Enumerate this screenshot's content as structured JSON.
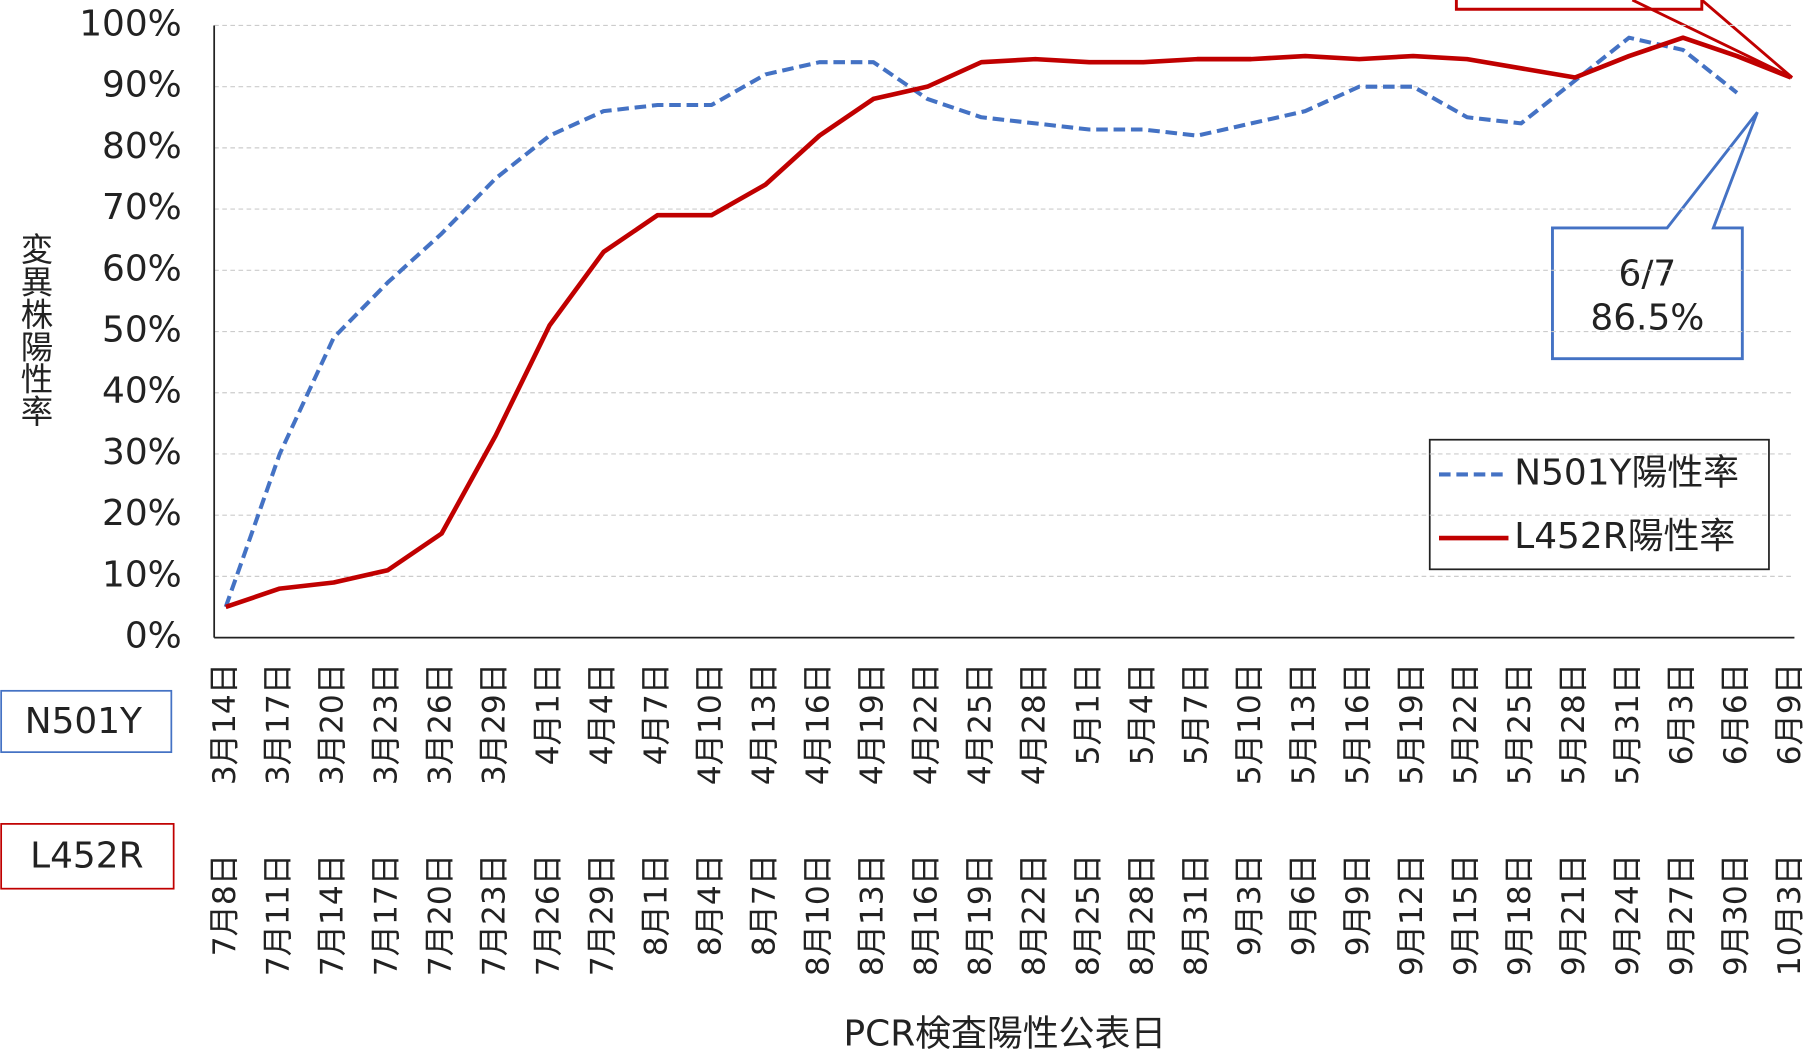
{
  "chart_data": {
    "type": "line",
    "y_axis_label": "変異株陽性率",
    "x_axis_label": "PCR検査陽性公表日",
    "category_rows": [
      {
        "name": "N501Y",
        "labels": [
          "3月14日",
          "3月17日",
          "3月20日",
          "3月23日",
          "3月26日",
          "3月29日",
          "4月1日",
          "4月4日",
          "4月7日",
          "4月10日",
          "4月13日",
          "4月16日",
          "4月19日",
          "4月22日",
          "4月25日",
          "4月28日",
          "5月1日",
          "5月4日",
          "5月7日",
          "5月10日",
          "5月13日",
          "5月16日",
          "5月19日",
          "5月22日",
          "5月25日",
          "5月28日",
          "5月31日",
          "6月3日",
          "6月6日",
          "6月9日"
        ]
      },
      {
        "name": "L452R",
        "labels": [
          "7月8日",
          "7月11日",
          "7月14日",
          "7月17日",
          "7月20日",
          "7月23日",
          "7月26日",
          "7月29日",
          "8月1日",
          "8月4日",
          "8月7日",
          "8月10日",
          "8月13日",
          "8月16日",
          "8月19日",
          "8月22日",
          "8月25日",
          "8月28日",
          "8月31日",
          "9月3日",
          "9月6日",
          "9月9日",
          "9月12日",
          "9月15日",
          "9月18日",
          "9月21日",
          "9月24日",
          "9月27日",
          "9月30日",
          "10月3日"
        ]
      }
    ],
    "series": [
      {
        "name": "N501Y陽性率",
        "color": "#4472c4",
        "dash": true,
        "values": [
          5,
          30,
          49,
          58,
          66,
          75,
          82,
          86,
          87,
          87,
          92,
          94,
          94,
          88,
          85,
          84,
          83,
          83,
          82,
          84,
          86,
          90,
          90,
          85,
          84,
          91,
          98,
          96,
          89,
          null
        ]
      },
      {
        "name": "L452R陽性率",
        "color": "#c00000",
        "dash": false,
        "values": [
          5,
          8,
          9,
          11,
          17,
          33,
          51,
          63,
          69,
          69,
          74,
          82,
          88,
          90,
          94,
          94.5,
          94,
          94,
          94.5,
          94.5,
          95,
          94.5,
          95,
          94.5,
          93,
          91.5,
          95,
          98,
          95,
          91.5
        ]
      }
    ],
    "ylim": [
      0,
      100
    ],
    "yticks": [
      {
        "value": 0,
        "label": "0%"
      },
      {
        "value": 10,
        "label": "10%"
      },
      {
        "value": 20,
        "label": "20%"
      },
      {
        "value": 30,
        "label": "30%"
      },
      {
        "value": 40,
        "label": "40%"
      },
      {
        "value": 50,
        "label": "50%"
      },
      {
        "value": 60,
        "label": "60%"
      },
      {
        "value": 70,
        "label": "70%"
      },
      {
        "value": 80,
        "label": "80%"
      },
      {
        "value": 90,
        "label": "90%"
      },
      {
        "value": 100,
        "label": "100%"
      }
    ],
    "grid": true,
    "legend": "lower right",
    "annotations": [
      {
        "lines": [
          "6/7",
          "86.5%"
        ]
      }
    ]
  }
}
